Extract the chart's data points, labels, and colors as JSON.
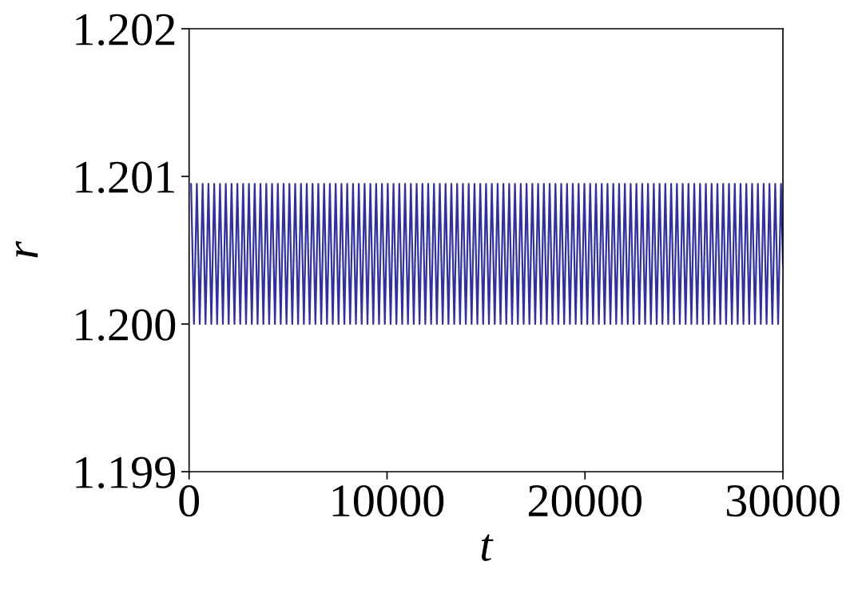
{
  "chart_data": {
    "type": "line",
    "xlabel": "t",
    "ylabel": "r",
    "xlim": [
      0,
      30000
    ],
    "xticks": [
      0,
      10000,
      20000,
      30000
    ],
    "ylim": [
      1.199,
      1.202
    ],
    "yticks": [
      1.199,
      {
        "value": 1.2,
        "label": "1.200"
      },
      1.201,
      1.202
    ],
    "grid": false,
    "series": [
      {
        "color": "#31319b",
        "x": [
          100,
          246,
          392,
          538,
          684,
          830,
          977,
          1123,
          1269,
          1415,
          1561,
          1707,
          1853,
          1999,
          2145,
          2291,
          2438,
          2584,
          2730,
          2876,
          3022,
          3168,
          3314,
          3460,
          3606,
          3752,
          3899,
          4045,
          4191,
          4337,
          4483,
          4629,
          4775,
          4921,
          5067,
          5213,
          5360,
          5506,
          5652,
          5798,
          5944,
          6090,
          6236,
          6382,
          6528,
          6674,
          6821,
          6967,
          7113,
          7259,
          7405,
          7551,
          7697,
          7843,
          7989,
          8135,
          8282,
          8428,
          8574,
          8720,
          8866,
          9012,
          9158,
          9304,
          9450,
          9596,
          9743,
          9889,
          10035,
          10181,
          10327,
          10473,
          10619,
          10765,
          10911,
          11057,
          11204,
          11350,
          11496,
          11642,
          11788,
          11934,
          12080,
          12226,
          12372,
          12518,
          12665,
          12811,
          12957,
          13103,
          13249,
          13395,
          13541,
          13687,
          13833,
          13979,
          14126,
          14272,
          14418,
          14564,
          14710,
          14856,
          15002,
          15148,
          15294,
          15440,
          15587,
          15733,
          15879,
          16025,
          16171,
          16317,
          16463,
          16609,
          16755,
          16901,
          17048,
          17194,
          17340,
          17486,
          17632,
          17778,
          17924,
          18070,
          18216,
          18362,
          18509,
          18655,
          18801,
          18947,
          19093,
          19239,
          19385,
          19531,
          19677,
          19823,
          19970,
          20116,
          20262,
          20408,
          20554,
          20700,
          20846,
          20992,
          21138,
          21284,
          21431,
          21577,
          21723,
          21869,
          22015,
          22161,
          22307,
          22453,
          22599,
          22745,
          22892,
          23038,
          23184,
          23330,
          23476,
          23622,
          23768,
          23914,
          24060,
          24206,
          24353,
          24499,
          24645,
          24791,
          24937,
          25083,
          25229,
          25375,
          25521,
          25667,
          25814,
          25960,
          26106,
          26252,
          26398,
          26544,
          26690,
          26836,
          26982,
          27128,
          27275,
          27421,
          27567,
          27713,
          27859,
          28005,
          28151,
          28297,
          28443,
          28589,
          28736,
          28882,
          29028,
          29174,
          29320,
          29466,
          29612,
          29758,
          29904,
          30000
        ],
        "values": [
          1.20095,
          1.2,
          1.20095,
          1.2,
          1.20095,
          1.2,
          1.20095,
          1.2,
          1.20095,
          1.2,
          1.20095,
          1.2,
          1.20095,
          1.2,
          1.20095,
          1.2,
          1.20095,
          1.2,
          1.20095,
          1.2,
          1.20095,
          1.2,
          1.20095,
          1.2,
          1.20095,
          1.2,
          1.20095,
          1.2,
          1.20095,
          1.2,
          1.20095,
          1.2,
          1.20095,
          1.2,
          1.20095,
          1.2,
          1.20095,
          1.2,
          1.20095,
          1.2,
          1.20095,
          1.2,
          1.20095,
          1.2,
          1.20095,
          1.2,
          1.20095,
          1.2,
          1.20095,
          1.2,
          1.20095,
          1.2,
          1.20095,
          1.2,
          1.20095,
          1.2,
          1.20095,
          1.2,
          1.20095,
          1.2,
          1.20095,
          1.2,
          1.20095,
          1.2,
          1.20095,
          1.2,
          1.20095,
          1.2,
          1.20095,
          1.2,
          1.20095,
          1.2,
          1.20095,
          1.2,
          1.20095,
          1.2,
          1.20095,
          1.2,
          1.20095,
          1.2,
          1.20095,
          1.2,
          1.20095,
          1.2,
          1.20095,
          1.2,
          1.20095,
          1.2,
          1.20095,
          1.2,
          1.20095,
          1.2,
          1.20095,
          1.2,
          1.20095,
          1.2,
          1.20095,
          1.2,
          1.20095,
          1.2,
          1.20095,
          1.2,
          1.20095,
          1.2,
          1.20095,
          1.2,
          1.20095,
          1.2,
          1.20095,
          1.2,
          1.20095,
          1.2,
          1.20095,
          1.2,
          1.20095,
          1.2,
          1.20095,
          1.2,
          1.20095,
          1.2,
          1.20095,
          1.2,
          1.20095,
          1.2,
          1.20095,
          1.2,
          1.20095,
          1.2,
          1.20095,
          1.2,
          1.20095,
          1.2,
          1.20095,
          1.2,
          1.20095,
          1.2,
          1.20095,
          1.2,
          1.20095,
          1.2,
          1.20095,
          1.2,
          1.20095,
          1.2,
          1.20095,
          1.2,
          1.20095,
          1.2,
          1.20095,
          1.2,
          1.20095,
          1.2,
          1.20095,
          1.2,
          1.20095,
          1.2,
          1.20095,
          1.2,
          1.20095,
          1.2,
          1.20095,
          1.2,
          1.20095,
          1.2,
          1.20095,
          1.2,
          1.20095,
          1.2,
          1.20095,
          1.2,
          1.20095,
          1.2,
          1.20095,
          1.2,
          1.20095,
          1.2,
          1.20095,
          1.2,
          1.20095,
          1.2,
          1.20095,
          1.2,
          1.20095,
          1.2,
          1.20095,
          1.2,
          1.20095,
          1.2,
          1.20095,
          1.2,
          1.20095,
          1.2,
          1.20095,
          1.2,
          1.20095,
          1.2,
          1.20095,
          1.2,
          1.20095,
          1.2,
          1.20095,
          1.2,
          1.20095,
          1.2,
          1.20095,
          1.2004
        ]
      }
    ]
  }
}
